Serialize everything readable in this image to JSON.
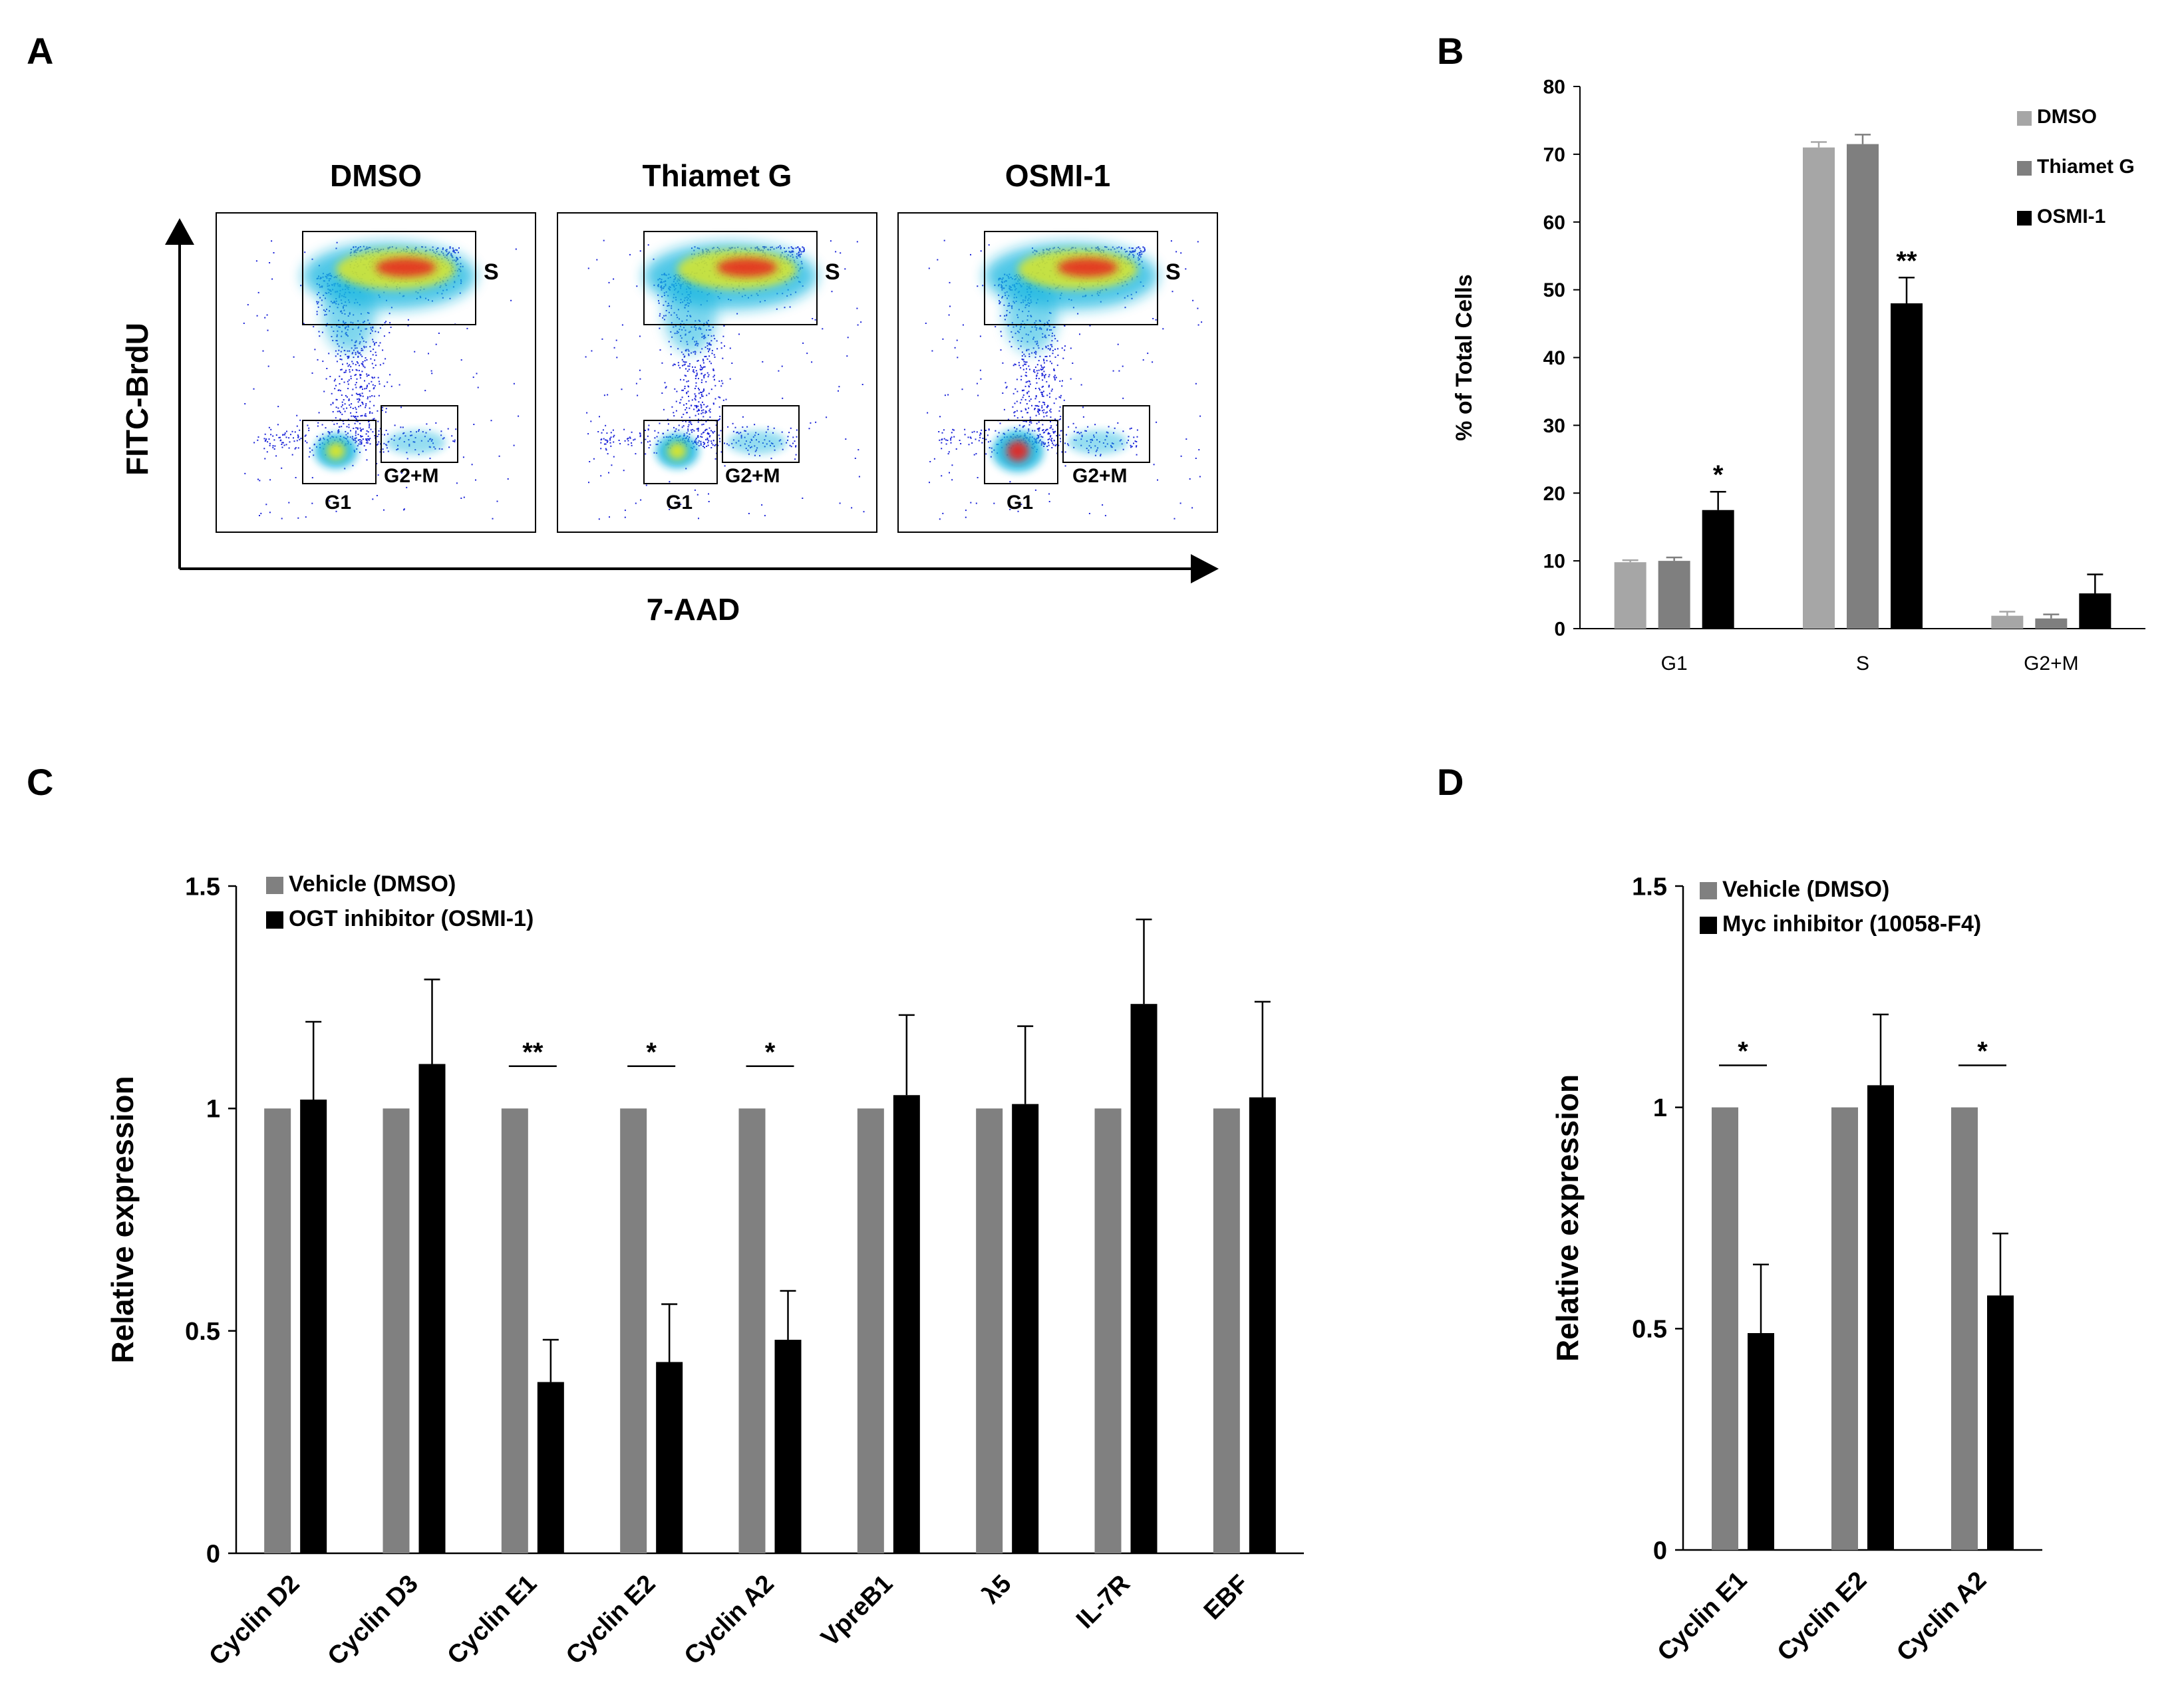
{
  "colors": {
    "black": "#000000",
    "b_dmso": "#a6a6a6",
    "b_thiamet": "#7f7f7f",
    "b_osmi": "#000000",
    "cd_vehicle": "#808080",
    "cd_inhibitor": "#000000",
    "density_low": "#1a22d8",
    "density_mid": "#19b6e0",
    "density_high": "#e4e81e",
    "density_peak": "#e8201a"
  },
  "panel_a": {
    "letter": "A",
    "y_axis_label": "FITC-BrdU",
    "x_axis_label": "7-AAD",
    "plots": [
      {
        "title": "DMSO",
        "gates": {
          "s": "S",
          "g1": "G1",
          "g2m": "G2+M"
        }
      },
      {
        "title": "Thiamet G",
        "gates": {
          "s": "S",
          "g1": "G1",
          "g2m": "G2+M"
        }
      },
      {
        "title": "OSMI-1",
        "gates": {
          "s": "S",
          "g1": "G1",
          "g2m": "G2+M"
        }
      }
    ]
  },
  "chart_data": [
    {
      "panel": "B",
      "type": "bar",
      "title": "",
      "xlabel": "",
      "ylabel": "% of Total Cells",
      "ylim": [
        0,
        80
      ],
      "yticks": [
        0,
        10,
        20,
        30,
        40,
        50,
        60,
        70,
        80
      ],
      "categories": [
        "G1",
        "S",
        "G2+M"
      ],
      "series": [
        {
          "name": "DMSO",
          "values": [
            9.8,
            71.0,
            1.9
          ],
          "errors": [
            0.3,
            0.8,
            0.6
          ]
        },
        {
          "name": "Thiamet G",
          "values": [
            10.0,
            71.5,
            1.5
          ],
          "errors": [
            0.5,
            1.4,
            0.6
          ]
        },
        {
          "name": "OSMI-1",
          "values": [
            17.5,
            48.0,
            5.2
          ],
          "errors": [
            2.7,
            3.8,
            2.8
          ]
        }
      ],
      "significance": [
        {
          "category": 0,
          "series": 2,
          "label": "*"
        },
        {
          "category": 1,
          "series": 2,
          "label": "**"
        }
      ],
      "legend": "top-right"
    },
    {
      "panel": "C",
      "type": "bar",
      "title": "",
      "xlabel": "",
      "ylabel": "Relative expression",
      "ylim": [
        0,
        1.5
      ],
      "yticks": [
        "0",
        "0.5",
        "1",
        "1.5"
      ],
      "categories": [
        "Cyclin D2",
        "Cyclin D3",
        "Cyclin E1",
        "Cyclin E2",
        "Cyclin A2",
        "VpreB1",
        "λ5",
        "IL-7R",
        "EBF"
      ],
      "series": [
        {
          "name": "Vehicle (DMSO)",
          "values": [
            1,
            1,
            1,
            1,
            1,
            1,
            1,
            1,
            1
          ],
          "errors": [
            0,
            0,
            0,
            0,
            0,
            0,
            0,
            0,
            0
          ]
        },
        {
          "name": "OGT inhibitor (OSMI-1)",
          "values": [
            1.02,
            1.1,
            0.385,
            0.43,
            0.48,
            1.03,
            1.01,
            1.235,
            1.025
          ],
          "errors": [
            0.175,
            0.19,
            0.095,
            0.13,
            0.11,
            0.18,
            0.175,
            0.19,
            0.215
          ]
        }
      ],
      "significance": [
        {
          "category": 2,
          "label": "**"
        },
        {
          "category": 3,
          "label": "*"
        },
        {
          "category": 4,
          "label": "*"
        }
      ],
      "legend": "top-left"
    },
    {
      "panel": "D",
      "type": "bar",
      "title": "",
      "xlabel": "",
      "ylabel": "Relative expression",
      "ylim": [
        0,
        1.5
      ],
      "yticks": [
        "0",
        "0.5",
        "1",
        "1.5"
      ],
      "categories": [
        "Cyclin E1",
        "Cyclin E2",
        "Cyclin A2"
      ],
      "series": [
        {
          "name": "Vehicle (DMSO)",
          "values": [
            1,
            1,
            1
          ],
          "errors": [
            0,
            0,
            0
          ]
        },
        {
          "name": "Myc inhibitor (10058-F4)",
          "values": [
            0.49,
            1.05,
            0.575
          ],
          "errors": [
            0.155,
            0.16,
            0.14
          ]
        }
      ],
      "significance": [
        {
          "category": 0,
          "label": "*"
        },
        {
          "category": 2,
          "label": "*"
        }
      ],
      "legend": "top-left"
    }
  ]
}
